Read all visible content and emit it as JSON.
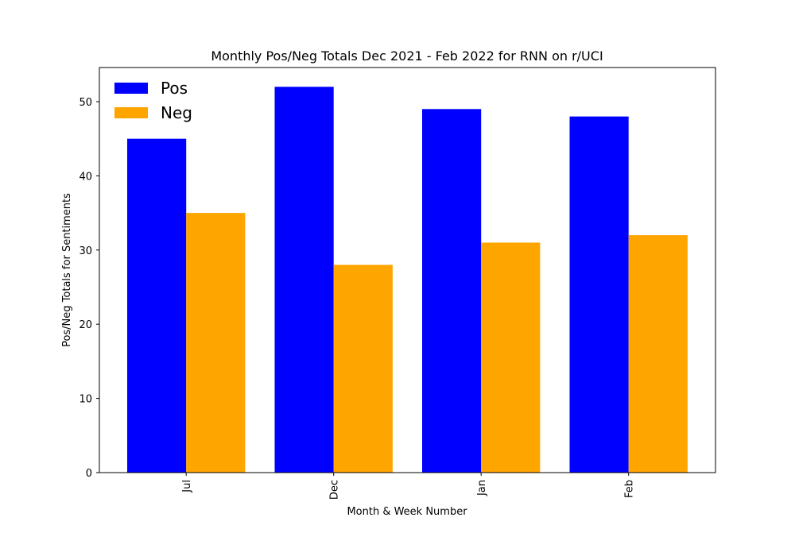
{
  "chart_data": {
    "type": "bar",
    "title": "Monthly Pos/Neg Totals Dec 2021 - Feb 2022 for RNN on r/UCI",
    "xlabel": "Month & Week Number",
    "ylabel": "Pos/Neg Totals for Sentiments",
    "categories": [
      "Jul",
      "Dec",
      "Jan",
      "Feb"
    ],
    "series": [
      {
        "name": "Pos",
        "values": [
          45,
          52,
          49,
          48
        ],
        "color": "#0000ff"
      },
      {
        "name": "Neg",
        "values": [
          35,
          28,
          31,
          32
        ],
        "color": "#ffa500"
      }
    ],
    "ylim": [
      0,
      54.6
    ],
    "yticks": [
      0,
      10,
      20,
      30,
      40,
      50
    ],
    "grid": false,
    "legend": "top-left"
  }
}
